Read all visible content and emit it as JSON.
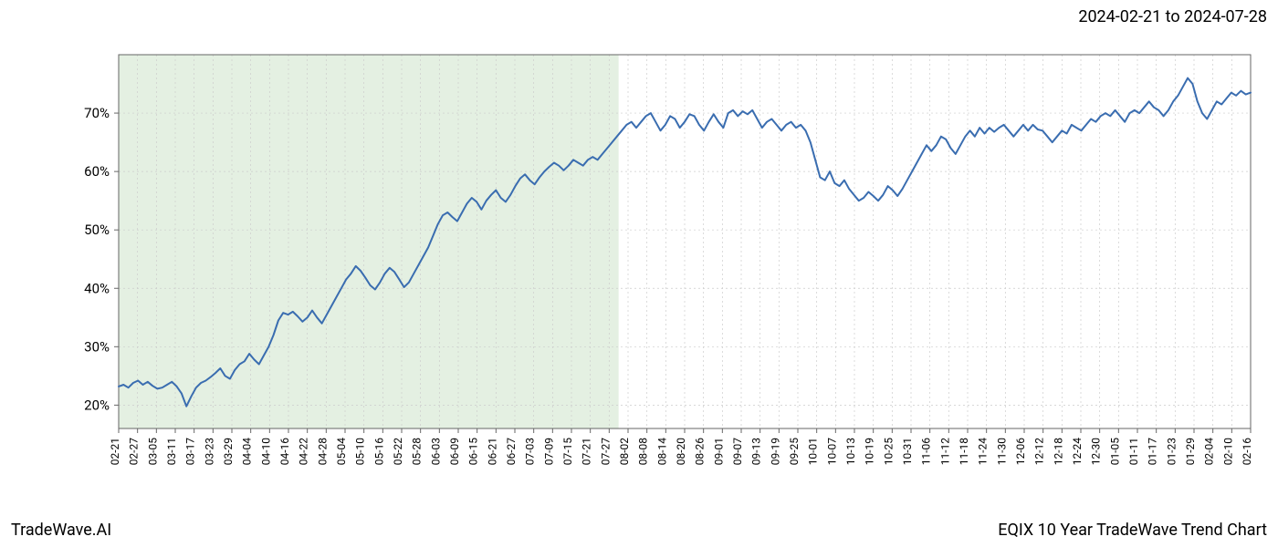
{
  "header": {
    "date_range": "2024-02-21 to 2024-07-28"
  },
  "footer": {
    "brand": "TradeWave.AI",
    "title": "EQIX 10 Year TradeWave Trend Chart"
  },
  "chart": {
    "type": "line",
    "background_color": "#ffffff",
    "plot_background_color": "#ffffff",
    "highlight_color": "#d6e8d2",
    "highlight_opacity": 0.65,
    "grid_color": "#cccccc",
    "grid_style": "dashed",
    "line_color": "#3a6db0",
    "line_width": 2,
    "axis_color": "#666666",
    "tick_color": "#000000",
    "tick_fontsize": 12,
    "y_label_fontsize": 15,
    "ylim": [
      16,
      80
    ],
    "y_ticks": [
      20,
      30,
      40,
      50,
      60,
      70
    ],
    "y_tick_labels": [
      "20%",
      "30%",
      "40%",
      "50%",
      "60%",
      "70%"
    ],
    "x_tick_labels": [
      "02-21",
      "02-27",
      "03-05",
      "03-11",
      "03-17",
      "03-23",
      "03-29",
      "04-04",
      "04-10",
      "04-16",
      "04-22",
      "04-28",
      "05-04",
      "05-10",
      "05-16",
      "05-22",
      "05-28",
      "06-03",
      "06-09",
      "06-15",
      "06-21",
      "06-27",
      "07-03",
      "07-09",
      "07-15",
      "07-21",
      "07-27",
      "08-02",
      "08-08",
      "08-14",
      "08-20",
      "08-26",
      "09-01",
      "09-07",
      "09-13",
      "09-19",
      "09-25",
      "10-01",
      "10-07",
      "10-13",
      "10-19",
      "10-25",
      "10-31",
      "11-06",
      "11-12",
      "11-18",
      "11-24",
      "11-30",
      "12-06",
      "12-12",
      "12-18",
      "12-24",
      "12-30",
      "01-05",
      "01-11",
      "01-17",
      "01-23",
      "01-29",
      "02-04",
      "02-10",
      "02-16"
    ],
    "highlight_start_index": 0,
    "highlight_end_index": 26.5,
    "data": [
      23.2,
      23.5,
      23.0,
      23.8,
      24.2,
      23.5,
      24.0,
      23.3,
      22.8,
      23.0,
      23.5,
      24.0,
      23.2,
      22.0,
      19.8,
      21.5,
      23.0,
      23.8,
      24.2,
      24.8,
      25.5,
      26.3,
      25.0,
      24.5,
      26.0,
      27.0,
      27.5,
      28.8,
      27.8,
      27.0,
      28.5,
      30.0,
      32.0,
      34.5,
      35.8,
      35.5,
      36.0,
      35.2,
      34.3,
      35.0,
      36.2,
      35.0,
      34.0,
      35.5,
      37.0,
      38.5,
      40.0,
      41.5,
      42.5,
      43.8,
      43.0,
      41.8,
      40.5,
      39.8,
      41.0,
      42.5,
      43.5,
      42.8,
      41.5,
      40.2,
      41.0,
      42.5,
      44.0,
      45.5,
      47.0,
      49.0,
      51.0,
      52.5,
      53.0,
      52.2,
      51.5,
      53.0,
      54.5,
      55.5,
      54.8,
      53.5,
      55.0,
      56.0,
      56.8,
      55.5,
      54.8,
      56.0,
      57.5,
      58.8,
      59.5,
      58.5,
      57.8,
      59.0,
      60.0,
      60.8,
      61.5,
      61.0,
      60.2,
      61.0,
      62.0,
      61.5,
      61.0,
      62.0,
      62.5,
      62.0,
      63.0,
      64.0,
      65.0,
      66.0,
      67.0,
      68.0,
      68.5,
      67.5,
      68.5,
      69.5,
      70.0,
      68.5,
      67.0,
      68.0,
      69.5,
      69.0,
      67.5,
      68.5,
      69.8,
      69.5,
      68.0,
      67.0,
      68.5,
      69.8,
      68.5,
      67.5,
      70.0,
      70.5,
      69.5,
      70.3,
      69.8,
      70.5,
      69.0,
      67.5,
      68.5,
      69.0,
      68.0,
      67.0,
      68.0,
      68.5,
      67.5,
      68.0,
      67.0,
      65.0,
      62.0,
      59.0,
      58.5,
      60.0,
      58.0,
      57.5,
      58.5,
      57.0,
      56.0,
      55.0,
      55.5,
      56.5,
      55.8,
      55.0,
      56.0,
      57.5,
      56.8,
      55.8,
      57.0,
      58.5,
      60.0,
      61.5,
      63.0,
      64.5,
      63.5,
      64.5,
      66.0,
      65.5,
      64.0,
      63.0,
      64.5,
      66.0,
      67.0,
      66.0,
      67.5,
      66.5,
      67.5,
      66.8,
      67.5,
      68.0,
      67.0,
      66.0,
      67.0,
      68.0,
      67.0,
      68.0,
      67.2,
      67.0,
      66.0,
      65.0,
      66.0,
      67.0,
      66.5,
      68.0,
      67.5,
      67.0,
      68.0,
      69.0,
      68.5,
      69.5,
      70.0,
      69.5,
      70.5,
      69.5,
      68.5,
      70.0,
      70.5,
      70.0,
      71.0,
      72.0,
      71.0,
      70.5,
      69.5,
      70.5,
      72.0,
      73.0,
      74.5,
      76.0,
      75.0,
      72.0,
      70.0,
      69.0,
      70.5,
      72.0,
      71.5,
      72.5,
      73.5,
      73.0,
      73.8,
      73.2,
      73.5
    ]
  }
}
